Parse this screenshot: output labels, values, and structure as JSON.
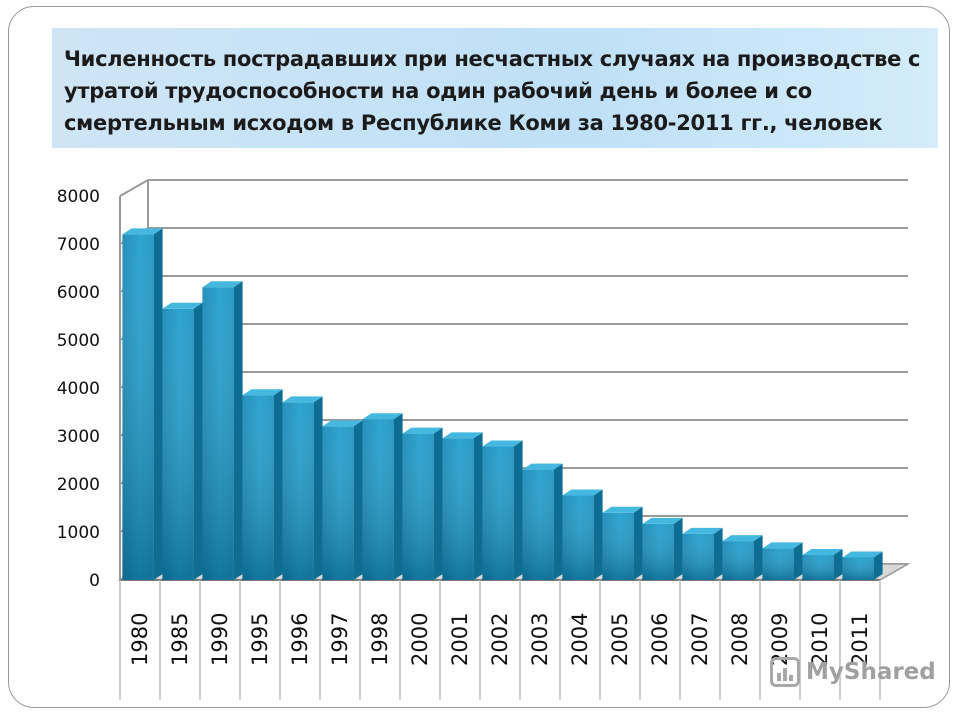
{
  "slide": {
    "title_lines": [
      "Численность пострадавших при несчастных случаях на производстве с",
      "утратой трудоспособности на один рабочий день и более и со",
      "смертельным исходом в Республике Коми за 1980-2011 гг., человек"
    ],
    "watermark": "MyShared"
  },
  "colors": {
    "bar_front": "#1b9ccc",
    "bar_top": "#45b8e0",
    "bar_side": "#0e6d92",
    "grid": "#9a9a9a",
    "title_bg": "#c6e3f7"
  },
  "chart_data": {
    "type": "bar",
    "title": "Численность пострадавших при несчастных случаях на производстве с утратой трудоспособности на один рабочий день и более и со смертельным исходом в Республике Коми за 1980-2011 гг., человек",
    "xlabel": "",
    "ylabel": "",
    "ylim": [
      0,
      8000
    ],
    "yticks": [
      0,
      1000,
      2000,
      3000,
      4000,
      5000,
      6000,
      7000,
      8000
    ],
    "grid": true,
    "legend": "none",
    "style": "3d-column",
    "categories": [
      "1980",
      "1985",
      "1990",
      "1995",
      "1996",
      "1997",
      "1998",
      "2000",
      "2001",
      "2002",
      "2003",
      "2004",
      "2005",
      "2006",
      "2007",
      "2008",
      "2009",
      "2010",
      "2011"
    ],
    "values": [
      7200,
      5650,
      6100,
      3850,
      3700,
      3200,
      3350,
      3050,
      2950,
      2780,
      2300,
      1760,
      1400,
      1170,
      960,
      810,
      660,
      520,
      470
    ]
  }
}
